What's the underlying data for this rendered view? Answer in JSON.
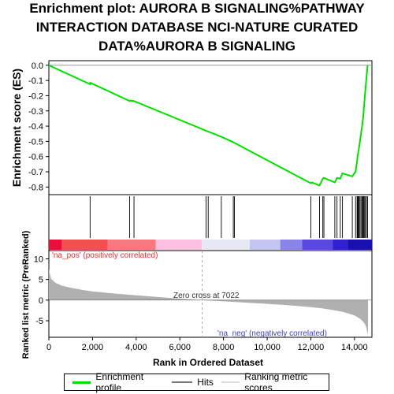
{
  "title_lines": [
    "Enrichment plot: AURORA B SIGNALING%PATHWAY",
    "INTERACTION DATABASE NCI-NATURE CURATED",
    "DATA%AURORA B SIGNALING"
  ],
  "colors": {
    "enrichment": "#00e000",
    "hits": "#000000",
    "metric": "#b0b0b0",
    "pos_text": "#e03030",
    "neg_text": "#4040c0"
  },
  "chart_data": [
    {
      "type": "line",
      "ylabel": "Enrichment score (ES)",
      "ylim": [
        -0.85,
        0.03
      ],
      "xlim": [
        0,
        14800
      ],
      "yticks": [
        0.0,
        -0.1,
        -0.2,
        -0.3,
        -0.4,
        -0.5,
        -0.6,
        -0.7,
        -0.8
      ],
      "ytick_labels": [
        "0.0",
        "-0.1",
        "-0.2",
        "-0.3",
        "-0.4",
        "-0.5",
        "-0.6",
        "-0.7",
        "-0.8"
      ],
      "series": [
        {
          "name": "Enrichment profile",
          "x": [
            0,
            1890,
            1900,
            3700,
            3720,
            3900,
            7200,
            7300,
            7900,
            8450,
            8500,
            12000,
            12050,
            12400,
            12450,
            12550,
            12600,
            13100,
            13200,
            13350,
            13450,
            13900,
            14050,
            14120,
            14150,
            14200,
            14250,
            14300,
            14350,
            14400,
            14450,
            14500,
            14550,
            14600
          ],
          "y": [
            0.0,
            -0.125,
            -0.115,
            -0.235,
            -0.232,
            -0.235,
            -0.43,
            -0.436,
            -0.47,
            -0.505,
            -0.51,
            -0.775,
            -0.77,
            -0.79,
            -0.775,
            -0.745,
            -0.74,
            -0.77,
            -0.74,
            -0.745,
            -0.71,
            -0.73,
            -0.7,
            -0.63,
            -0.59,
            -0.55,
            -0.5,
            -0.45,
            -0.4,
            -0.34,
            -0.25,
            -0.16,
            -0.08,
            0.0
          ]
        }
      ]
    },
    {
      "type": "bar",
      "name": "hits",
      "x": [
        1890,
        3700,
        3900,
        7200,
        7300,
        7900,
        8450,
        8500,
        12000,
        12400,
        12550,
        12600,
        13100,
        13200,
        13350,
        13450,
        13900,
        14050,
        14120,
        14150,
        14180,
        14200,
        14250,
        14300,
        14350,
        14380,
        14420,
        14450,
        14500,
        14550,
        14600
      ]
    },
    {
      "type": "area",
      "xlabel": "Rank in Ordered Dataset",
      "ylabel": "Ranked list metric (PreRanked)",
      "ylim": [
        -9,
        12
      ],
      "xlim": [
        0,
        14800
      ],
      "xticks": [
        0,
        2000,
        4000,
        6000,
        8000,
        10000,
        12000,
        14000
      ],
      "xtick_labels": [
        "0",
        "2,000",
        "4,000",
        "6,000",
        "8,000",
        "10,000",
        "12,000",
        "14,000"
      ],
      "yticks": [
        10,
        5,
        0,
        -5
      ],
      "ytick_labels": [
        "10",
        "5",
        "0",
        "-5"
      ],
      "x": [
        0,
        100,
        300,
        600,
        1000,
        1500,
        2000,
        3000,
        4000,
        5000,
        6000,
        7022,
        8000,
        9000,
        10000,
        11000,
        12000,
        12500,
        13000,
        13500,
        14000,
        14200,
        14400,
        14500,
        14550,
        14600,
        14620
      ],
      "y": [
        7.5,
        5.2,
        4.2,
        3.5,
        3.0,
        2.5,
        2.1,
        1.6,
        1.15,
        0.75,
        0.35,
        0.0,
        -0.3,
        -0.6,
        -0.9,
        -1.25,
        -1.7,
        -2.0,
        -2.4,
        -2.9,
        -3.7,
        -4.3,
        -5.2,
        -6.0,
        -6.8,
        -8.0,
        -8.5
      ],
      "zero_cross_label": "Zero cross at 7022",
      "zero_cross": 7022,
      "pos_label": "'na_pos' (positively correlated)",
      "neg_label": "'na_neg' (negatively correlated)"
    }
  ],
  "legend": {
    "items": [
      "Enrichment profile",
      "Hits",
      "Ranking metric scores"
    ]
  }
}
